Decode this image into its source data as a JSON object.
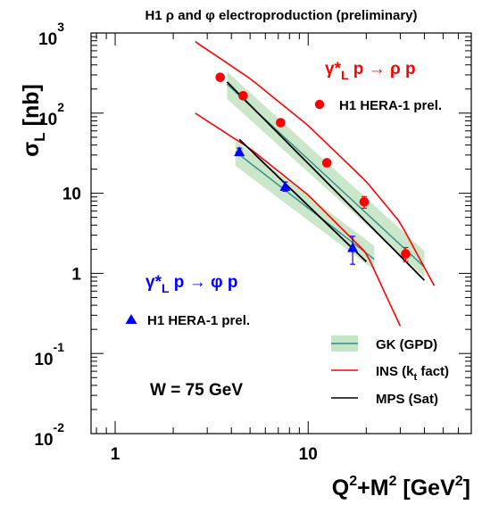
{
  "chart_data": {
    "type": "scatter",
    "title": "H1 ρ and φ electroproduction (preliminary)",
    "xlabel": "Q²+M² [GeV²]",
    "ylabel": "σL [nb]",
    "xscale": "log",
    "yscale": "log",
    "xlim": [
      0.75,
      70
    ],
    "ylim": [
      0.01,
      1000
    ],
    "x_ticks": [
      {
        "label": "1",
        "value": 1
      },
      {
        "label": "10",
        "value": 10
      }
    ],
    "y_ticks": [
      {
        "base": "10",
        "exp": "-2",
        "value": 0.01
      },
      {
        "base": "10",
        "exp": "-1",
        "value": 0.1
      },
      {
        "base": "1",
        "exp": "",
        "value": 1
      },
      {
        "base": "10",
        "exp": "",
        "value": 10
      },
      {
        "base": "10",
        "exp": "2",
        "value": 100
      },
      {
        "base": "10",
        "exp": "3",
        "value": 1000
      }
    ],
    "annotations": {
      "rho_process": "γ*L p → ρ p",
      "phi_process": "γ*L p → φ p",
      "energy": "W = 75 GeV"
    },
    "legend_data": [
      {
        "label": "H1 HERA-1 prel.",
        "marker": "circle",
        "color": "#ff0000"
      },
      {
        "label": "H1 HERA-1 prel.",
        "marker": "triangle",
        "color": "#0000ff"
      }
    ],
    "legend_models": [
      {
        "label": "GK (GPD)",
        "style": "band",
        "color": "#2e8b8b"
      },
      {
        "label": "INS (kt fact)",
        "style": "line",
        "color": "#ff0000"
      },
      {
        "label": "MPS (Sat)",
        "style": "line",
        "color": "#000000"
      }
    ],
    "series": [
      {
        "name": "ρ H1 HERA-1 prel.",
        "marker": "circle",
        "color": "#ff0000",
        "points": [
          {
            "x": 3.5,
            "y": 280,
            "err": 18
          },
          {
            "x": 4.6,
            "y": 165,
            "err": 12
          },
          {
            "x": 7.2,
            "y": 76,
            "err": 6
          },
          {
            "x": 12.5,
            "y": 24,
            "err": 2.5
          },
          {
            "x": 19.5,
            "y": 7.8,
            "err": 1.3
          },
          {
            "x": 32,
            "y": 1.75,
            "err": 0.35
          }
        ]
      },
      {
        "name": "φ H1 HERA-1 prel.",
        "marker": "triangle",
        "color": "#0000ff",
        "points": [
          {
            "x": 4.4,
            "y": 33,
            "err": 3.5
          },
          {
            "x": 7.6,
            "y": 12.2,
            "err": 1.6
          },
          {
            "x": 17,
            "y": 2.1,
            "err": 0.8
          }
        ]
      },
      {
        "name": "INS ρ",
        "style": "line",
        "color": "#ff0000",
        "x": [
          2.6,
          5,
          10,
          20,
          30,
          45
        ],
        "y": [
          780,
          270,
          70,
          14,
          4.3,
          0.7
        ]
      },
      {
        "name": "INS φ",
        "style": "line",
        "color": "#ff0000",
        "x": [
          2.6,
          5,
          10,
          20,
          30
        ],
        "y": [
          100,
          36,
          9.5,
          1.8,
          0.22
        ]
      },
      {
        "name": "MPS ρ",
        "style": "line",
        "color": "#000000",
        "x": [
          3.8,
          40
        ],
        "y": [
          245,
          0.82
        ]
      },
      {
        "name": "MPS φ",
        "style": "line",
        "color": "#000000",
        "x": [
          4.4,
          20
        ],
        "y": [
          47,
          1.4
        ]
      },
      {
        "name": "GK ρ",
        "style": "band",
        "color": "#2e8b8b",
        "x": [
          3.8,
          40
        ],
        "y": [
          230,
          1.2
        ],
        "upper": [
          330,
          1.9
        ],
        "lower": [
          150,
          0.9
        ]
      },
      {
        "name": "GK φ",
        "style": "band",
        "color": "#2e8b8b",
        "x": [
          4.2,
          22
        ],
        "y": [
          33,
          1.5
        ],
        "upper": [
          45,
          2.2
        ],
        "lower": [
          22,
          1.1
        ]
      }
    ]
  }
}
